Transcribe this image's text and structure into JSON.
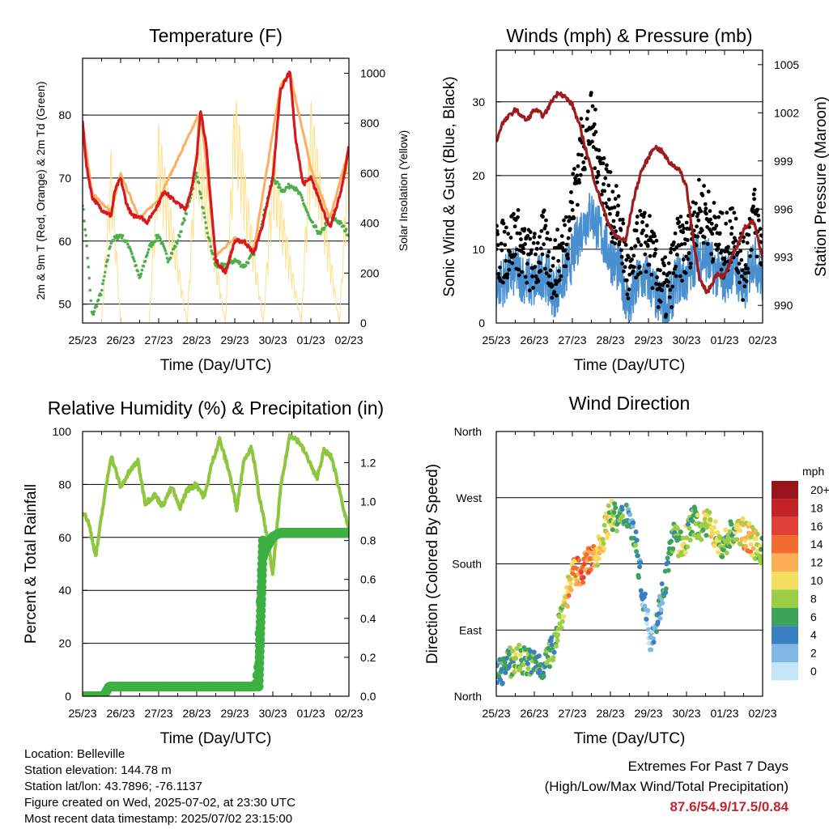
{
  "chart_data": [
    {
      "type": "line",
      "title": "Temperature (F)",
      "xlabel": "Time (Day/UTC)",
      "ylabel": "2m & 9m T (Red, Orange) & 2m Td (Green)",
      "ylabel_right": "Solar Insolation (Yellow)",
      "x_ticks": [
        "25/23",
        "26/23",
        "27/23",
        "28/23",
        "29/23",
        "30/23",
        "01/23",
        "02/23"
      ],
      "ylim": [
        47,
        89
      ],
      "y_ticks": [
        50,
        60,
        70,
        80
      ],
      "ylim_right": [
        0,
        1060
      ],
      "y_ticks_right": [
        0,
        200,
        400,
        600,
        800,
        1000
      ],
      "series": [
        {
          "name": "2m T",
          "color": "#d7191c",
          "x": [
            0,
            0.1,
            0.25,
            0.5,
            0.75,
            0.85,
            1.0,
            1.15,
            1.3,
            1.5,
            1.7,
            2.0,
            2.15,
            2.3,
            2.5,
            2.7,
            2.85,
            3.0,
            3.1,
            3.25,
            3.5,
            3.75,
            4.0,
            4.25,
            4.5,
            4.75,
            5.0,
            5.2,
            5.45,
            5.6,
            5.8,
            6.0,
            6.2,
            6.5,
            6.8,
            7.0
          ],
          "values": [
            79,
            72,
            67,
            65,
            64,
            68,
            70,
            66,
            64,
            64,
            63,
            66,
            68,
            67,
            66,
            65,
            68,
            73,
            81,
            75,
            57,
            55,
            60,
            60,
            58,
            63,
            70,
            84,
            87,
            76,
            69,
            70,
            67,
            62,
            68,
            75
          ]
        },
        {
          "name": "9m T",
          "color": "#fdae61",
          "x": [
            0,
            0.25,
            0.75,
            1.0,
            1.5,
            2.0,
            3.1,
            3.5,
            4.0,
            4.5,
            5.2,
            5.45,
            6.0,
            6.5,
            7.0
          ],
          "values": [
            78,
            67,
            64,
            70,
            63,
            66,
            80,
            57,
            60,
            58,
            84,
            86,
            71,
            63,
            74
          ]
        },
        {
          "name": "2m Td",
          "color": "#4daf4a",
          "x": [
            0,
            0.1,
            0.25,
            0.5,
            0.75,
            1.0,
            1.25,
            1.5,
            1.75,
            2.0,
            2.25,
            2.5,
            2.75,
            3.0,
            3.25,
            3.5,
            3.75,
            4.0,
            4.25,
            4.5,
            4.75,
            5.0,
            5.25,
            5.5,
            5.75,
            6.0,
            6.25,
            6.5,
            6.75,
            7.0
          ],
          "values": [
            66,
            60,
            48,
            52,
            60,
            61,
            59,
            54,
            59,
            61,
            57,
            60,
            65,
            71,
            62,
            56,
            56,
            57,
            56,
            58,
            64,
            70,
            68,
            69,
            67,
            63,
            61,
            64,
            63,
            61
          ]
        },
        {
          "name": "Solar Insolation",
          "color": "#fee08b",
          "axis": "right",
          "x": [
            0.0,
            0.5,
            0.75,
            1.0,
            1.75,
            2.0,
            2.75,
            3.0,
            3.75,
            4.0,
            4.75,
            5.0,
            5.75,
            6.0,
            6.75,
            7.0
          ],
          "values": [
            0,
            0,
            700,
            0,
            0,
            800,
            0,
            850,
            0,
            950,
            0,
            700,
            0,
            900,
            0,
            830
          ]
        }
      ]
    },
    {
      "type": "scatter",
      "title": "Winds (mph) & Pressure (mb)",
      "xlabel": "Time (Day/UTC)",
      "ylabel": "Sonic Wind & Gust (Blue, Black)",
      "ylabel_right": "Station Pressure (Maroon)",
      "x_ticks": [
        "25/23",
        "26/23",
        "27/23",
        "28/23",
        "29/23",
        "30/23",
        "01/23",
        "02/23"
      ],
      "ylim": [
        0,
        37
      ],
      "y_ticks": [
        0,
        10,
        20,
        30
      ],
      "ylim_right": [
        988.9,
        1005.9
      ],
      "y_ticks_right": [
        990,
        993,
        996,
        999,
        1002,
        1005
      ],
      "series": [
        {
          "name": "Sonic Wind",
          "color": "#4a90d0",
          "x": [
            0,
            0.25,
            0.5,
            0.75,
            1.0,
            1.25,
            1.5,
            1.75,
            2.0,
            2.25,
            2.5,
            2.75,
            3.0,
            3.25,
            3.5,
            3.75,
            4.0,
            4.25,
            4.5,
            4.75,
            5.0,
            5.25,
            5.5,
            5.75,
            6.0,
            6.25,
            6.5,
            6.75,
            7.0
          ],
          "values": [
            5,
            6,
            7,
            6,
            5,
            7,
            4,
            6,
            9,
            13,
            15,
            12,
            9,
            7,
            2,
            6,
            6,
            3,
            2,
            6,
            6,
            9,
            9,
            7,
            6,
            8,
            4,
            9,
            6
          ]
        },
        {
          "name": "Gust",
          "color": "#000000",
          "x": [
            0,
            0.25,
            0.5,
            0.75,
            1.0,
            1.25,
            1.5,
            1.75,
            2.0,
            2.25,
            2.5,
            2.75,
            3.0,
            3.25,
            3.5,
            3.75,
            4.0,
            4.25,
            4.5,
            4.75,
            5.0,
            5.25,
            5.5,
            5.75,
            6.0,
            6.25,
            6.5,
            6.75,
            7.0
          ],
          "values": [
            9,
            10,
            12,
            9,
            8,
            11,
            7,
            10,
            16,
            24,
            27,
            21,
            16,
            13,
            5,
            11,
            11,
            6,
            4,
            10,
            10,
            15,
            15,
            12,
            10,
            13,
            7,
            15,
            10
          ]
        },
        {
          "name": "Station Pressure",
          "color": "#9e1b1e",
          "axis": "right",
          "x": [
            0,
            0.15,
            0.5,
            0.8,
            1.0,
            1.25,
            1.5,
            1.65,
            1.8,
            2.0,
            2.2,
            2.4,
            2.65,
            2.9,
            3.1,
            3.4,
            3.6,
            3.8,
            4.0,
            4.15,
            4.35,
            4.55,
            4.8,
            5.0,
            5.15,
            5.35,
            5.55,
            5.8,
            6.0,
            6.25,
            6.55,
            6.75,
            7.0
          ],
          "values": [
            1000.2,
            1001.3,
            1002.2,
            1001.5,
            1002.2,
            1001.8,
            1002.9,
            1003.3,
            1003,
            1002.5,
            1001.1,
            999.3,
            997.2,
            995.4,
            994.4,
            994,
            996.5,
            998.3,
            999.2,
            999.9,
            999.6,
            998.9,
            998.5,
            997.4,
            994.6,
            991.5,
            990.8,
            992,
            991.8,
            993.3,
            994.9,
            995.3,
            993
          ]
        }
      ]
    },
    {
      "type": "line",
      "title": "Relative Humidity (%) & Precipitation (in)",
      "xlabel": "Time (Day/UTC)",
      "ylabel": "Percent & Total Rainfall",
      "x_ticks": [
        "25/23",
        "26/23",
        "27/23",
        "28/23",
        "29/23",
        "30/23",
        "01/23",
        "02/23"
      ],
      "ylim": [
        0,
        100
      ],
      "y_ticks": [
        0,
        20,
        40,
        60,
        80,
        100
      ],
      "ylim_right": [
        0,
        1.36
      ],
      "y_ticks_right": [
        "0.0",
        "0.2",
        "0.4",
        "0.6",
        "0.8",
        "1.0",
        "1.2"
      ],
      "series": [
        {
          "name": "Relative Humidity",
          "color": "#8fc640",
          "x": [
            0,
            0.15,
            0.35,
            0.55,
            0.75,
            1.0,
            1.2,
            1.45,
            1.65,
            1.9,
            2.1,
            2.35,
            2.55,
            2.75,
            3.0,
            3.2,
            3.4,
            3.6,
            3.85,
            4.05,
            4.25,
            4.45,
            4.65,
            4.85,
            5.0,
            5.2,
            5.45,
            5.7,
            5.95,
            6.15,
            6.35,
            6.55,
            6.75,
            7.0
          ],
          "values": [
            70,
            66,
            53,
            73,
            91,
            79,
            84,
            89,
            73,
            76,
            72,
            79,
            71,
            78,
            80,
            75,
            88,
            97,
            85,
            71,
            90,
            94,
            75,
            60,
            46,
            78,
            99,
            96,
            89,
            82,
            93,
            90,
            78,
            62
          ]
        },
        {
          "name": "Total Rainfall",
          "color": "#3cb043",
          "axis": "right",
          "x": [
            0,
            0.55,
            0.7,
            4.55,
            4.62,
            4.66,
            4.72,
            4.8,
            5.0,
            5.2,
            7.0
          ],
          "values": [
            0.0,
            0.0,
            0.05,
            0.05,
            0.15,
            0.38,
            0.7,
            0.75,
            0.82,
            0.84,
            0.84
          ]
        }
      ]
    },
    {
      "type": "scatter",
      "title": "Wind Direction",
      "xlabel": "Time (Day/UTC)",
      "ylabel": "Direction (Colored By Speed)",
      "x_ticks": [
        "25/23",
        "26/23",
        "27/23",
        "28/23",
        "29/23",
        "30/23",
        "01/23",
        "02/23"
      ],
      "ylim": [
        0,
        360
      ],
      "y_tick_labels": [
        "North",
        "East",
        "South",
        "West",
        "North"
      ],
      "colorbar": {
        "unit": "mph",
        "labels": [
          "20+",
          "18",
          "16",
          "14",
          "12",
          "10",
          "8",
          "6",
          "4",
          "2",
          "0"
        ],
        "colors": [
          "#99141a",
          "#c52229",
          "#e2413a",
          "#f26c2f",
          "#fbae54",
          "#f3de61",
          "#9bcd45",
          "#3da35b",
          "#3a7fc1",
          "#81b7e3",
          "#c4e5f8"
        ]
      },
      "x": [
        0.05,
        0.3,
        0.6,
        0.9,
        1.2,
        1.45,
        1.7,
        2.0,
        2.2,
        2.4,
        2.6,
        2.8,
        3.0,
        3.2,
        3.45,
        3.65,
        3.85,
        4.05,
        4.25,
        4.45,
        4.65,
        4.9,
        5.15,
        5.4,
        5.65,
        5.9,
        6.15,
        6.4,
        6.65,
        6.9
      ],
      "values": [
        30,
        45,
        50,
        45,
        40,
        60,
        110,
        165,
        170,
        180,
        190,
        215,
        250,
        235,
        250,
        215,
        140,
        80,
        110,
        160,
        220,
        200,
        240,
        230,
        235,
        200,
        220,
        225,
        215,
        200
      ],
      "speeds": [
        4,
        6,
        8,
        6,
        5,
        6,
        8,
        12,
        14,
        14,
        12,
        10,
        8,
        6,
        4,
        6,
        3,
        2,
        3,
        4,
        6,
        8,
        6,
        8,
        10,
        8,
        6,
        10,
        12,
        8
      ]
    }
  ],
  "info": {
    "location": "Location: Belleville",
    "elevation": "Station elevation: 144.78 m",
    "latlon": "Station lat/lon: 43.7896; -76.1137",
    "created": "Figure created on Wed, 2025-07-02, at 23:30 UTC",
    "recent": "Most recent data timestamp: 2025/07/02 23:15:00"
  },
  "extremes": {
    "line1": "Extremes For Past 7 Days",
    "line2": "(High/Low/Max Wind/Total Precipitation)",
    "values": "87.6/54.9/17.5/0.84"
  }
}
